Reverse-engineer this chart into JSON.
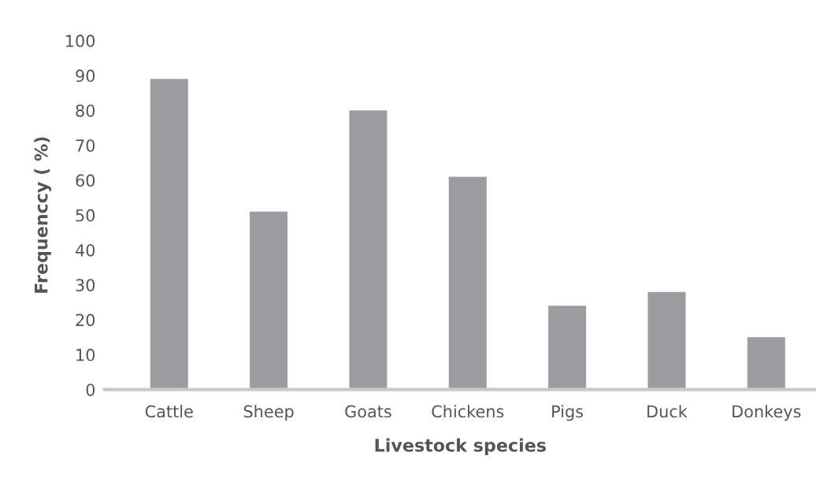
{
  "chart_data": {
    "type": "bar",
    "xlabel": "Livestock species",
    "ylabel": "Frequenccy ( %)",
    "categories": [
      "Cattle",
      "Sheep",
      "Goats",
      "Chickens",
      "Pigs",
      "Duck",
      "Donkeys"
    ],
    "values": [
      89,
      51,
      80,
      61,
      24,
      28,
      15
    ],
    "color": "#9a9ca0",
    "ylim": [
      0,
      100
    ],
    "yticks": [
      0,
      10,
      20,
      30,
      40,
      50,
      60,
      70,
      80,
      90,
      100
    ],
    "grid": false,
    "legend": false
  }
}
